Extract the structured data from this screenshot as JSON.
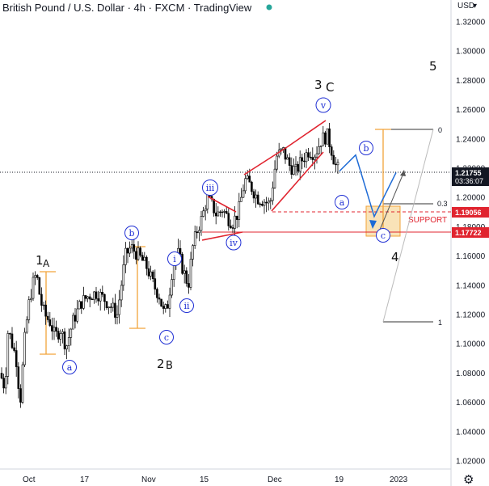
{
  "header": {
    "title": "British Pound / U.S. Dollar · 4h · FXCM · TradingView",
    "currency": "USD",
    "status_color": "#26a69a"
  },
  "price_tags": {
    "last": "1.21755",
    "countdown": "03:36:07",
    "level_a": "1.19056",
    "level_b": "1.17722",
    "last_color": "#131722",
    "level_color": "#e0242f"
  },
  "support_label": "SUPPORT",
  "fib_labels": {
    "top": "0",
    "mid": "0.3",
    "bottom": "1"
  },
  "wave_labels": {
    "w1": "1",
    "wA": "A",
    "w2": "2",
    "wB": "B",
    "w3": "3",
    "wC": "C",
    "w4": "4",
    "w5": "5",
    "circ_a_low": "a",
    "circ_b1": "b",
    "circ_c1": "c",
    "circ_i": "i",
    "circ_ii": "ii",
    "circ_iii": "iii",
    "circ_iv": "iv",
    "circ_v": "v",
    "circ_a2": "a",
    "circ_b2": "b",
    "circ_c2": "c"
  },
  "chart_data": {
    "type": "candlestick",
    "title": "British Pound / U.S. Dollar · 4h · FXCM · TradingView",
    "ylabel": "USD",
    "ylim": [
      1.015,
      1.335
    ],
    "yticks": [
      "1.32000",
      "1.30000",
      "1.28000",
      "1.26000",
      "1.24000",
      "1.22000",
      "1.20000",
      "1.18000",
      "1.16000",
      "1.14000",
      "1.12000",
      "1.10000",
      "1.08000",
      "1.06000",
      "1.04000",
      "1.02000"
    ],
    "xticks": [
      "Oct",
      "17",
      "Nov",
      "15",
      "Dec",
      "19",
      "2023"
    ],
    "price_path": [
      [
        0,
        1.08
      ],
      [
        6,
        1.07
      ],
      [
        10,
        1.11
      ],
      [
        15,
        1.1
      ],
      [
        20,
        1.09
      ],
      [
        25,
        1.06
      ],
      [
        30,
        1.1
      ],
      [
        35,
        1.125
      ],
      [
        40,
        1.14
      ],
      [
        45,
        1.148
      ],
      [
        50,
        1.13
      ],
      [
        55,
        1.12
      ],
      [
        62,
        1.115
      ],
      [
        68,
        1.105
      ],
      [
        75,
        1.11
      ],
      [
        82,
        1.098
      ],
      [
        90,
        1.115
      ],
      [
        100,
        1.128
      ],
      [
        110,
        1.133
      ],
      [
        120,
        1.135
      ],
      [
        130,
        1.13
      ],
      [
        138,
        1.125
      ],
      [
        145,
        1.12
      ],
      [
        155,
        1.16
      ],
      [
        162,
        1.166
      ],
      [
        172,
        1.16
      ],
      [
        182,
        1.152
      ],
      [
        190,
        1.14
      ],
      [
        197,
        1.133
      ],
      [
        203,
        1.12
      ],
      [
        208,
        1.128
      ],
      [
        214,
        1.155
      ],
      [
        220,
        1.162
      ],
      [
        228,
        1.148
      ],
      [
        233,
        1.14
      ],
      [
        238,
        1.165
      ],
      [
        244,
        1.178
      ],
      [
        250,
        1.186
      ],
      [
        256,
        1.2
      ],
      [
        262,
        1.195
      ],
      [
        268,
        1.188
      ],
      [
        275,
        1.192
      ],
      [
        282,
        1.186
      ],
      [
        288,
        1.183
      ],
      [
        295,
        1.19
      ],
      [
        303,
        1.212
      ],
      [
        310,
        1.208
      ],
      [
        318,
        1.2
      ],
      [
        326,
        1.198
      ],
      [
        334,
        1.195
      ],
      [
        342,
        1.228
      ],
      [
        350,
        1.232
      ],
      [
        358,
        1.222
      ],
      [
        366,
        1.218
      ],
      [
        374,
        1.226
      ],
      [
        382,
        1.232
      ],
      [
        390,
        1.23
      ],
      [
        398,
        1.24
      ],
      [
        405,
        1.242
      ],
      [
        410,
        1.233
      ],
      [
        415,
        1.222
      ],
      [
        420,
        1.218
      ]
    ],
    "projection": [
      [
        420,
        1.218
      ],
      [
        440,
        1.229
      ],
      [
        463,
        1.187
      ],
      [
        490,
        1.217
      ]
    ],
    "fib_levels": {
      "0": 1.246,
      "0.3": 1.199,
      "1": 1.116
    },
    "horizontal_levels": {
      "last_price": 1.21755,
      "resistance_support_top": 1.19056,
      "support_bottom": 1.17722
    },
    "support_zone": [
      1.176,
      1.196
    ],
    "grid": false
  }
}
